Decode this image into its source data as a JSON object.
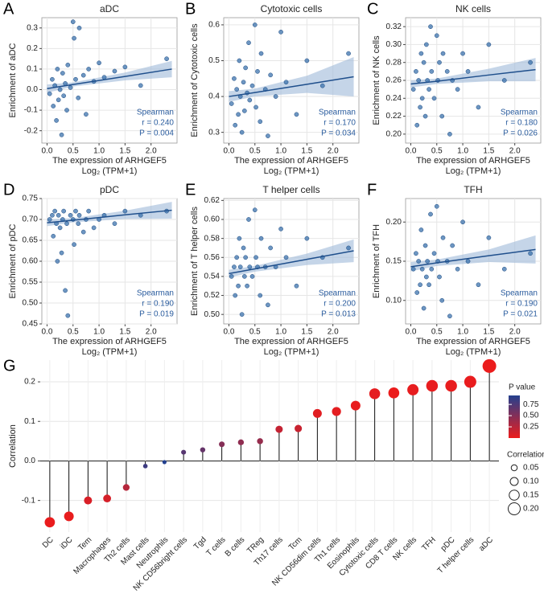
{
  "chart_data": [
    {
      "type": "scatter",
      "panel_label": "A",
      "title": "aDC",
      "x_label": "The expression of ARHGEF5",
      "x_label_2": "Log₂ (TPM+1)",
      "y_label": "Enrichment of aDC",
      "annotations": [
        "Spearman",
        "r = 0.240",
        "P = 0.004"
      ],
      "color": "#2f6aa8",
      "grid": true,
      "xlim": [
        -0.1,
        2.5
      ],
      "xticks": [
        {
          "value": 0,
          "label": "0.0"
        },
        0.5,
        {
          "value": 1,
          "label": "1.0"
        },
        1.5,
        {
          "value": 2,
          "label": "2.0"
        }
      ],
      "ylim": [
        -0.26,
        0.35
      ],
      "yticks": [
        -0.2,
        -0.1,
        {
          "value": 0,
          "label": "0.0"
        },
        0.1,
        0.2,
        0.3
      ],
      "x": [
        0.05,
        0.1,
        0.12,
        0.15,
        0.18,
        0.2,
        0.22,
        0.25,
        0.28,
        0.3,
        0.32,
        0.35,
        0.38,
        0.4,
        0.45,
        0.5,
        0.52,
        0.55,
        0.6,
        0.62,
        0.7,
        0.75,
        0.8,
        0.9,
        1.0,
        1.1,
        1.3,
        1.5,
        1.8,
        2.3
      ],
      "values": [
        -0.02,
        0.05,
        -0.08,
        0.02,
        -0.15,
        0.1,
        -0.05,
        0.0,
        -0.22,
        0.08,
        -0.03,
        0.03,
        -0.1,
        0.12,
        0.01,
        0.33,
        0.25,
        0.05,
        -0.04,
        0.3,
        0.07,
        -0.12,
        0.1,
        0.04,
        0.13,
        0.06,
        0.09,
        0.11,
        0.02,
        0.15
      ],
      "fit": {
        "x": [
          0,
          0.5,
          1.5,
          2.4
        ],
        "values": [
          0.005,
          0.025,
          0.064,
          0.1
        ],
        "lower": [
          -0.015,
          0.015,
          0.045,
          0.06
        ],
        "upper": [
          0.025,
          0.035,
          0.083,
          0.14
        ]
      }
    },
    {
      "type": "scatter",
      "panel_label": "B",
      "title": "Cytotoxic cells",
      "x_label": "The expression of ARHGEF5",
      "x_label_2": "Log₂ (TPM+1)",
      "y_label": "Enrichment of Cytotoxic cells",
      "annotations": [
        "Spearman",
        "r = 0.170",
        "P = 0.034"
      ],
      "color": "#2f6aa8",
      "grid": true,
      "xlim": [
        -0.1,
        2.5
      ],
      "xticks": [
        {
          "value": 0,
          "label": "0.0"
        },
        0.5,
        {
          "value": 1,
          "label": "1.0"
        },
        1.5,
        {
          "value": 2,
          "label": "2.0"
        }
      ],
      "ylim": [
        0.27,
        0.62
      ],
      "yticks": [
        0.3,
        0.4,
        0.5,
        0.6
      ],
      "x": [
        0.05,
        0.1,
        0.12,
        0.15,
        0.18,
        0.2,
        0.22,
        0.25,
        0.28,
        0.3,
        0.32,
        0.35,
        0.38,
        0.4,
        0.45,
        0.5,
        0.52,
        0.55,
        0.6,
        0.62,
        0.7,
        0.75,
        0.8,
        0.9,
        1.0,
        1.1,
        1.3,
        1.5,
        1.8,
        2.3
      ],
      "values": [
        0.38,
        0.45,
        0.32,
        0.42,
        0.35,
        0.5,
        0.4,
        0.3,
        0.44,
        0.36,
        0.48,
        0.41,
        0.55,
        0.39,
        0.43,
        0.6,
        0.37,
        0.47,
        0.33,
        0.52,
        0.42,
        0.29,
        0.46,
        0.4,
        0.58,
        0.44,
        0.35,
        0.5,
        0.43,
        0.52
      ],
      "fit": {
        "x": [
          0,
          0.5,
          1.5,
          2.4
        ],
        "values": [
          0.4,
          0.411,
          0.434,
          0.455
        ],
        "lower": [
          0.385,
          0.4,
          0.41,
          0.4
        ],
        "upper": [
          0.415,
          0.422,
          0.458,
          0.51
        ]
      }
    },
    {
      "type": "scatter",
      "panel_label": "C",
      "title": "NK cells",
      "x_label": "The expression of ARHGEF5",
      "x_label_2": "Log₂ (TPM+1)",
      "y_label": "Enrichment of NK cells",
      "annotations": [
        "Spearman",
        "r = 0.180",
        "P = 0.026"
      ],
      "color": "#2f6aa8",
      "grid": true,
      "xlim": [
        -0.1,
        2.5
      ],
      "xticks": [
        {
          "value": 0,
          "label": "0.0"
        },
        0.5,
        {
          "value": 1,
          "label": "1.0"
        },
        1.5,
        {
          "value": 2,
          "label": "2.0"
        }
      ],
      "ylim": [
        0.19,
        0.33
      ],
      "yticks": [
        {
          "value": 0.2,
          "label": "0.20"
        },
        0.22,
        0.24,
        0.26,
        0.28,
        {
          "value": 0.3,
          "label": "0.30"
        },
        0.32
      ],
      "x": [
        0.05,
        0.1,
        0.12,
        0.15,
        0.18,
        0.2,
        0.22,
        0.25,
        0.28,
        0.3,
        0.32,
        0.35,
        0.38,
        0.4,
        0.45,
        0.5,
        0.52,
        0.55,
        0.6,
        0.62,
        0.7,
        0.75,
        0.8,
        0.9,
        1.0,
        1.1,
        1.3,
        1.5,
        1.8,
        2.3
      ],
      "values": [
        0.25,
        0.27,
        0.21,
        0.26,
        0.23,
        0.29,
        0.24,
        0.28,
        0.22,
        0.3,
        0.26,
        0.25,
        0.32,
        0.27,
        0.24,
        0.31,
        0.26,
        0.28,
        0.22,
        0.29,
        0.27,
        0.2,
        0.26,
        0.25,
        0.29,
        0.27,
        0.23,
        0.3,
        0.26,
        0.28
      ],
      "fit": {
        "x": [
          0,
          0.5,
          1.5,
          2.4
        ],
        "values": [
          0.256,
          0.259,
          0.266,
          0.272
        ],
        "lower": [
          0.252,
          0.256,
          0.259,
          0.259
        ],
        "upper": [
          0.26,
          0.262,
          0.273,
          0.285
        ]
      }
    },
    {
      "type": "scatter",
      "panel_label": "D",
      "title": "pDC",
      "x_label": "The expression of ARHGEF5",
      "x_label_2": "Log₂ (TPM+1)",
      "y_label": "Enrichment of pDC",
      "annotations": [
        "Spearman",
        "r = 0.190",
        "P = 0.019"
      ],
      "color": "#2f6aa8",
      "grid": true,
      "xlim": [
        -0.1,
        2.5
      ],
      "xticks": [
        {
          "value": 0,
          "label": "0.0"
        },
        0.5,
        {
          "value": 1,
          "label": "1.0"
        },
        1.5,
        {
          "value": 2,
          "label": "2.0"
        }
      ],
      "ylim": [
        0.45,
        0.75
      ],
      "yticks": [
        0.45,
        {
          "value": 0.5,
          "label": "0.50"
        },
        0.55,
        {
          "value": 0.6,
          "label": "0.60"
        },
        0.65,
        {
          "value": 0.7,
          "label": "0.70"
        },
        0.75
      ],
      "x": [
        0.05,
        0.1,
        0.12,
        0.15,
        0.18,
        0.2,
        0.22,
        0.25,
        0.28,
        0.3,
        0.32,
        0.35,
        0.38,
        0.4,
        0.45,
        0.5,
        0.52,
        0.55,
        0.6,
        0.62,
        0.7,
        0.75,
        0.8,
        0.9,
        1.0,
        1.1,
        1.3,
        1.5,
        1.8,
        2.3
      ],
      "values": [
        0.7,
        0.71,
        0.66,
        0.72,
        0.69,
        0.6,
        0.71,
        0.68,
        0.62,
        0.7,
        0.72,
        0.53,
        0.69,
        0.47,
        0.71,
        0.7,
        0.64,
        0.72,
        0.69,
        0.71,
        0.67,
        0.7,
        0.72,
        0.68,
        0.7,
        0.71,
        0.69,
        0.72,
        0.71,
        0.72
      ],
      "fit": {
        "x": [
          0,
          0.5,
          1.5,
          2.4
        ],
        "values": [
          0.692,
          0.698,
          0.711,
          0.722
        ],
        "lower": [
          0.684,
          0.693,
          0.701,
          0.702
        ],
        "upper": [
          0.7,
          0.703,
          0.721,
          0.742
        ]
      }
    },
    {
      "type": "scatter",
      "panel_label": "E",
      "title": "T helper cells",
      "x_label": "The expression of ARHGEF5",
      "x_label_2": "Log₂ (TPM+1)",
      "y_label": "Enrichment of T helper cells",
      "annotations": [
        "Spearman",
        "r = 0.200",
        "P = 0.013"
      ],
      "color": "#2f6aa8",
      "grid": true,
      "xlim": [
        -0.1,
        2.5
      ],
      "xticks": [
        {
          "value": 0,
          "label": "0.0"
        },
        0.5,
        {
          "value": 1,
          "label": "1.0"
        },
        1.5,
        {
          "value": 2,
          "label": "2.0"
        }
      ],
      "ylim": [
        0.49,
        0.622
      ],
      "yticks": [
        {
          "value": 0.5,
          "label": "0.50"
        },
        0.52,
        0.54,
        0.56,
        0.58,
        {
          "value": 0.6,
          "label": "0.60"
        },
        0.62
      ],
      "x": [
        0.05,
        0.1,
        0.12,
        0.15,
        0.18,
        0.2,
        0.22,
        0.25,
        0.28,
        0.3,
        0.32,
        0.35,
        0.38,
        0.4,
        0.45,
        0.5,
        0.52,
        0.55,
        0.6,
        0.62,
        0.7,
        0.75,
        0.8,
        0.9,
        1.0,
        1.1,
        1.3,
        1.5,
        1.8,
        2.3
      ],
      "values": [
        0.54,
        0.55,
        0.52,
        0.56,
        0.53,
        0.58,
        0.55,
        0.5,
        0.57,
        0.54,
        0.56,
        0.53,
        0.6,
        0.55,
        0.54,
        0.61,
        0.56,
        0.55,
        0.52,
        0.58,
        0.55,
        0.51,
        0.57,
        0.55,
        0.59,
        0.56,
        0.53,
        0.58,
        0.56,
        0.57
      ],
      "fit": {
        "x": [
          0,
          0.5,
          1.5,
          2.4
        ],
        "values": [
          0.543,
          0.548,
          0.558,
          0.567
        ],
        "lower": [
          0.539,
          0.545,
          0.552,
          0.555
        ],
        "upper": [
          0.547,
          0.551,
          0.564,
          0.579
        ]
      }
    },
    {
      "type": "scatter",
      "panel_label": "F",
      "title": "TFH",
      "x_label": "The expression of ARHGEF5",
      "x_label_2": "Log₂ (TPM+1)",
      "y_label": "Enrichment of TFH",
      "annotations": [
        "Spearman",
        "r = 0.190",
        "P = 0.021"
      ],
      "color": "#2f6aa8",
      "grid": true,
      "xlim": [
        -0.1,
        2.5
      ],
      "xticks": [
        {
          "value": 0,
          "label": "0.0"
        },
        0.5,
        {
          "value": 1,
          "label": "1.0"
        },
        1.5,
        {
          "value": 2,
          "label": "2.0"
        }
      ],
      "ylim": [
        0.07,
        0.23
      ],
      "yticks": [
        {
          "value": 0.1,
          "label": "0.10"
        },
        0.15,
        {
          "value": 0.2,
          "label": "0.20"
        }
      ],
      "x": [
        0.05,
        0.1,
        0.12,
        0.15,
        0.18,
        0.2,
        0.22,
        0.25,
        0.28,
        0.3,
        0.32,
        0.35,
        0.38,
        0.4,
        0.45,
        0.5,
        0.52,
        0.55,
        0.6,
        0.62,
        0.7,
        0.75,
        0.8,
        0.9,
        1.0,
        1.1,
        1.3,
        1.5,
        1.8,
        2.3
      ],
      "values": [
        0.14,
        0.16,
        0.11,
        0.15,
        0.12,
        0.19,
        0.14,
        0.09,
        0.17,
        0.13,
        0.15,
        0.12,
        0.21,
        0.14,
        0.16,
        0.22,
        0.15,
        0.13,
        0.1,
        0.18,
        0.15,
        0.08,
        0.17,
        0.14,
        0.2,
        0.15,
        0.12,
        0.18,
        0.14,
        0.16
      ],
      "fit": {
        "x": [
          0,
          0.5,
          1.5,
          2.4
        ],
        "values": [
          0.143,
          0.148,
          0.157,
          0.165
        ],
        "lower": [
          0.137,
          0.144,
          0.149,
          0.147
        ],
        "upper": [
          0.149,
          0.152,
          0.165,
          0.183
        ]
      }
    },
    {
      "type": "lollipop",
      "panel_label": "G",
      "y_label": "Correlation",
      "grid": true,
      "categories": [
        "DC",
        "iDC",
        "Tem",
        "Macrophages",
        "Th2 cells",
        "Mast cells",
        "Neutrophils",
        "NK CD56bright cells",
        "Tgd",
        "T cells",
        "B cells",
        "TReg",
        "Th17 cells",
        "Tcm",
        "NK CD56dim cells",
        "Th1 cells",
        "Eosinophils",
        "Cytotoxic cells",
        "CD8 T cells",
        "NK cells",
        "TFH",
        "pDC",
        "T helper cells",
        "aDC"
      ],
      "values": [
        -0.155,
        -0.14,
        -0.1,
        -0.095,
        -0.067,
        -0.013,
        -0.003,
        0.022,
        0.028,
        0.042,
        0.047,
        0.05,
        0.08,
        0.082,
        0.12,
        0.125,
        0.14,
        0.17,
        0.172,
        0.18,
        0.19,
        0.19,
        0.2,
        0.24
      ],
      "p_values": [
        0.01,
        0.02,
        0.09,
        0.11,
        0.26,
        0.83,
        0.96,
        0.71,
        0.64,
        0.49,
        0.44,
        0.41,
        0.19,
        0.17,
        0.05,
        0.04,
        0.02,
        0.034,
        0.004,
        0.026,
        0.021,
        0.019,
        0.013,
        0.004
      ],
      "ylim": [
        -0.18,
        0.255
      ],
      "yticks": [
        -0.1,
        {
          "value": 0,
          "label": "0.0"
        },
        0.1,
        0.2
      ],
      "color_legend_title": "P value",
      "color_scale": {
        "low": "#ec1c1c",
        "high": "#24408e"
      },
      "color_lim": [
        0,
        0.95
      ],
      "color_ticks": [
        0.25,
        {
          "value": 0.5,
          "label": "0.50"
        },
        0.75
      ],
      "size_legend_title": "Correlation",
      "size_ticks": [
        0.05,
        {
          "value": 0.1,
          "label": "0.10"
        },
        0.15,
        {
          "value": 0.2,
          "label": "0.20"
        }
      ]
    }
  ]
}
